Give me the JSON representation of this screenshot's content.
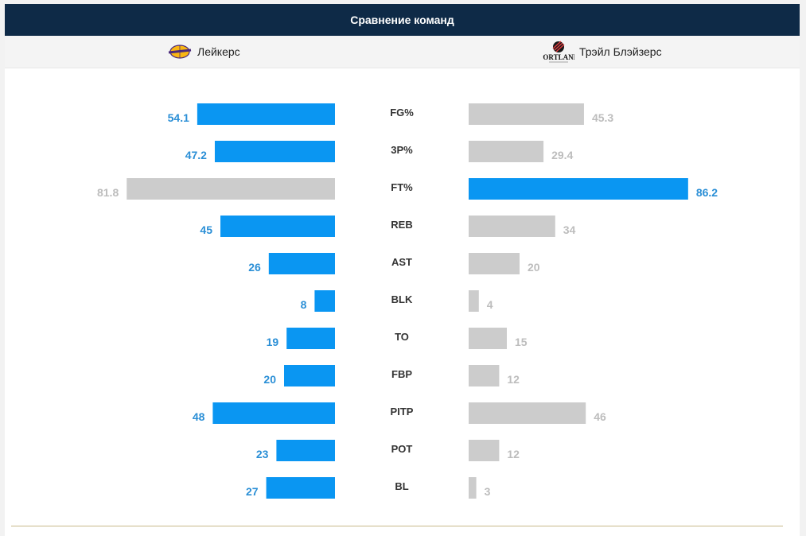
{
  "header": {
    "title": "Сравнение команд"
  },
  "teams": {
    "home": {
      "name": "Лейкерс",
      "logo_icon": "lakers-logo-icon"
    },
    "away": {
      "name": "Трэйл Блэйзерс",
      "logo_icon": "portland-logo-icon",
      "logo_text": "PORTLAND"
    }
  },
  "colors": {
    "leader": "#0a96f2",
    "trailer": "#cccccc",
    "leader_text": "#2b8fd6",
    "trailer_text": "#bdbdbd",
    "header_bg": "#0e2a47"
  },
  "chart_data": {
    "type": "bar",
    "categories": [
      "FG%",
      "3P%",
      "FT%",
      "REB",
      "AST",
      "BLK",
      "TO",
      "FBP",
      "PITP",
      "POT",
      "BL"
    ],
    "series": [
      {
        "name": "Лейкерс",
        "values": [
          54.1,
          47.2,
          81.8,
          45,
          26,
          8,
          19,
          20,
          48,
          23,
          27
        ],
        "labels": [
          "54.1",
          "47.2",
          "81.8",
          "45",
          "26",
          "8",
          "19",
          "20",
          "48",
          "23",
          "27"
        ]
      },
      {
        "name": "Трэйл Блэйзерс",
        "values": [
          45.3,
          29.4,
          86.2,
          34,
          20,
          4,
          15,
          12,
          46,
          12,
          3
        ],
        "labels": [
          "45.3",
          "29.4",
          "86.2",
          "34",
          "20",
          "4",
          "15",
          "12",
          "46",
          "12",
          "3"
        ]
      }
    ],
    "highlight": [
      "home",
      "home",
      "away",
      "home",
      "home",
      "home",
      "home",
      "home",
      "home",
      "home",
      "home"
    ],
    "layout": "mirrored-horizontal-bars"
  }
}
